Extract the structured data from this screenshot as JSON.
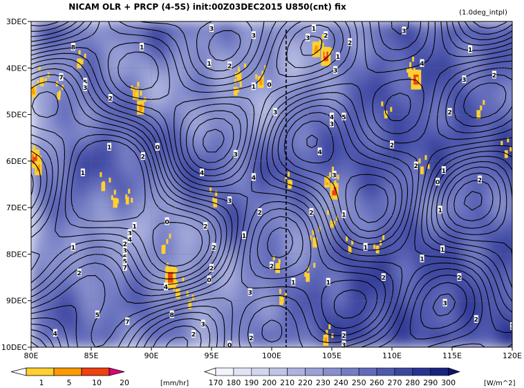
{
  "chart_data": {
    "type": "heatmap",
    "title": "NICAM  OLR + PRCP (4-5S) init:00Z03DEC2015 U850(cnt) fix",
    "subtitle": "(1.0deg_intpl)",
    "x_ticks": [
      "80E",
      "85E",
      "90E",
      "95E",
      "100E",
      "105E",
      "110E",
      "115E",
      "120E"
    ],
    "x_values": [
      80,
      85,
      90,
      95,
      100,
      105,
      110,
      115,
      120
    ],
    "y_ticks": [
      "3DEC",
      "4DEC",
      "5DEC",
      "6DEC",
      "7DEC",
      "8DEC",
      "9DEC",
      "10DEC"
    ],
    "y_values": [
      3,
      4,
      5,
      6,
      7,
      8,
      9,
      10
    ],
    "xlim": [
      80,
      120
    ],
    "ylim": [
      3,
      10
    ],
    "y_direction": "downward",
    "marker_line_lon": 101.2,
    "precip_colorbar": {
      "labels": [
        "1",
        "5",
        "10",
        "20"
      ],
      "unit": "[mm/hr]",
      "colors": [
        "#ffffff",
        "#ffd030",
        "#ff9a00",
        "#f04010",
        "#e0007a"
      ]
    },
    "olr_colorbar": {
      "labels": [
        "170",
        "180",
        "190",
        "200",
        "210",
        "220",
        "230",
        "240",
        "250",
        "260",
        "270",
        "280",
        "290",
        "300"
      ],
      "unit": "[W/m^2]",
      "colors": [
        "#ffffff",
        "#f3f3fb",
        "#e2e4f4",
        "#d2d5ee",
        "#c0c4e6",
        "#adb2de",
        "#9aa1d6",
        "#878fcd",
        "#747dc4",
        "#626bba",
        "#4f59ae",
        "#3c47a0",
        "#29338f",
        "#1a2280",
        "#0d1570"
      ]
    },
    "olr_field_lon": [
      80,
      82.5,
      85,
      87.5,
      90,
      92.5,
      95,
      97.5,
      100,
      102.5,
      105,
      107.5,
      110,
      112.5,
      115,
      117.5,
      120
    ],
    "olr_field_day": [
      3,
      3.5,
      4,
      4.5,
      5,
      5.5,
      6,
      6.5,
      7,
      7.5,
      8,
      8.5,
      9,
      9.5,
      10
    ],
    "olr_field": [
      [
        255,
        262,
        240,
        245,
        268,
        262,
        250,
        238,
        246,
        236,
        240,
        252,
        262,
        270,
        266,
        258,
        262
      ],
      [
        245,
        252,
        236,
        240,
        258,
        246,
        240,
        232,
        238,
        226,
        232,
        244,
        256,
        262,
        258,
        252,
        258
      ],
      [
        228,
        244,
        250,
        230,
        232,
        228,
        232,
        236,
        226,
        222,
        236,
        250,
        262,
        270,
        264,
        256,
        262
      ],
      [
        222,
        240,
        256,
        246,
        226,
        232,
        240,
        228,
        222,
        234,
        246,
        262,
        268,
        264,
        262,
        250,
        256
      ],
      [
        214,
        236,
        250,
        258,
        246,
        236,
        226,
        224,
        230,
        242,
        254,
        266,
        262,
        258,
        266,
        258,
        262
      ],
      [
        220,
        232,
        248,
        262,
        262,
        254,
        242,
        232,
        244,
        252,
        258,
        266,
        264,
        270,
        272,
        262,
        268
      ],
      [
        232,
        262,
        270,
        260,
        256,
        264,
        262,
        246,
        262,
        272,
        262,
        266,
        274,
        262,
        268,
        262,
        266
      ],
      [
        238,
        260,
        262,
        252,
        246,
        260,
        258,
        254,
        262,
        258,
        246,
        258,
        262,
        252,
        256,
        252,
        262
      ],
      [
        234,
        248,
        246,
        236,
        226,
        240,
        252,
        258,
        252,
        240,
        232,
        246,
        250,
        242,
        246,
        240,
        252
      ],
      [
        228,
        236,
        232,
        226,
        222,
        226,
        244,
        256,
        246,
        232,
        236,
        258,
        262,
        258,
        264,
        258,
        262
      ],
      [
        232,
        244,
        226,
        232,
        240,
        226,
        232,
        246,
        240,
        240,
        256,
        268,
        272,
        268,
        270,
        266,
        270
      ],
      [
        242,
        252,
        236,
        242,
        246,
        230,
        224,
        238,
        244,
        250,
        262,
        272,
        270,
        266,
        268,
        262,
        266
      ],
      [
        250,
        258,
        250,
        248,
        252,
        238,
        226,
        232,
        248,
        256,
        266,
        270,
        262,
        260,
        266,
        264,
        270
      ],
      [
        252,
        262,
        256,
        252,
        250,
        246,
        230,
        236,
        252,
        258,
        270,
        276,
        268,
        266,
        272,
        268,
        272
      ],
      [
        246,
        252,
        248,
        242,
        240,
        238,
        232,
        244,
        256,
        262,
        272,
        278,
        272,
        268,
        266,
        270,
        276
      ]
    ],
    "precip_cells": [
      {
        "lon": 80.2,
        "day": 4.5,
        "mmhr": 6
      },
      {
        "lon": 80.9,
        "day": 4.3,
        "mmhr": 3
      },
      {
        "lon": 80.3,
        "day": 5.95,
        "mmhr": 12
      },
      {
        "lon": 80.6,
        "day": 6.15,
        "mmhr": 8
      },
      {
        "lon": 82.3,
        "day": 4.6,
        "mmhr": 2
      },
      {
        "lon": 84.0,
        "day": 3.9,
        "mmhr": 4
      },
      {
        "lon": 88.7,
        "day": 4.55,
        "mmhr": 6
      },
      {
        "lon": 89.1,
        "day": 4.85,
        "mmhr": 8
      },
      {
        "lon": 86.0,
        "day": 6.55,
        "mmhr": 3
      },
      {
        "lon": 87.0,
        "day": 6.9,
        "mmhr": 4
      },
      {
        "lon": 88.0,
        "day": 6.85,
        "mmhr": 2
      },
      {
        "lon": 91.0,
        "day": 7.9,
        "mmhr": 3
      },
      {
        "lon": 91.6,
        "day": 8.5,
        "mmhr": 14
      },
      {
        "lon": 92.2,
        "day": 8.85,
        "mmhr": 4
      },
      {
        "lon": 95.3,
        "day": 6.9,
        "mmhr": 3
      },
      {
        "lon": 93.2,
        "day": 9.1,
        "mmhr": 2
      },
      {
        "lon": 97.0,
        "day": 4.5,
        "mmhr": 3
      },
      {
        "lon": 99.1,
        "day": 4.3,
        "mmhr": 6
      },
      {
        "lon": 103.7,
        "day": 3.6,
        "mmhr": 9
      },
      {
        "lon": 104.5,
        "day": 3.75,
        "mmhr": 12
      },
      {
        "lon": 101.5,
        "day": 6.5,
        "mmhr": 3
      },
      {
        "lon": 105.2,
        "day": 6.65,
        "mmhr": 10
      },
      {
        "lon": 104.6,
        "day": 6.45,
        "mmhr": 5
      },
      {
        "lon": 105.0,
        "day": 7.35,
        "mmhr": 2
      },
      {
        "lon": 103.6,
        "day": 7.75,
        "mmhr": 4
      },
      {
        "lon": 103.0,
        "day": 8.5,
        "mmhr": 3
      },
      {
        "lon": 106.5,
        "day": 7.9,
        "mmhr": 2
      },
      {
        "lon": 100.8,
        "day": 9.0,
        "mmhr": 3
      },
      {
        "lon": 104.5,
        "day": 9.85,
        "mmhr": 5
      },
      {
        "lon": 108.8,
        "day": 7.9,
        "mmhr": 2
      },
      {
        "lon": 109.5,
        "day": 5.0,
        "mmhr": 2
      },
      {
        "lon": 112.0,
        "day": 4.25,
        "mmhr": 13
      },
      {
        "lon": 111.5,
        "day": 4.1,
        "mmhr": 3
      },
      {
        "lon": 117.2,
        "day": 5.0,
        "mmhr": 3
      },
      {
        "lon": 119.5,
        "day": 5.85,
        "mmhr": 2
      },
      {
        "lon": 112.5,
        "day": 6.2,
        "mmhr": 2
      },
      {
        "lon": 97.3,
        "day": 4.2,
        "mmhr": 4
      },
      {
        "lon": 100.5,
        "day": 8.3,
        "mmhr": 4
      }
    ],
    "u850_contour_labels": [
      {
        "lon": 95.0,
        "day": 3.15,
        "value": "3"
      },
      {
        "lon": 98.5,
        "day": 3.3,
        "value": "3"
      },
      {
        "lon": 83.5,
        "day": 3.55,
        "value": "8"
      },
      {
        "lon": 89.2,
        "day": 3.55,
        "value": "1"
      },
      {
        "lon": 94.8,
        "day": 3.9,
        "value": "1"
      },
      {
        "lon": 96.5,
        "day": 3.95,
        "value": "2"
      },
      {
        "lon": 82.5,
        "day": 4.2,
        "value": "7"
      },
      {
        "lon": 84.5,
        "day": 4.3,
        "value": "5"
      },
      {
        "lon": 84.5,
        "day": 4.42,
        "value": "3"
      },
      {
        "lon": 86.6,
        "day": 4.65,
        "value": "2"
      },
      {
        "lon": 98.5,
        "day": 4.4,
        "value": "1"
      },
      {
        "lon": 99.8,
        "day": 4.35,
        "value": "0"
      },
      {
        "lon": 103.5,
        "day": 3.15,
        "value": "1"
      },
      {
        "lon": 104.5,
        "day": 3.3,
        "value": "2"
      },
      {
        "lon": 103.0,
        "day": 3.35,
        "value": "3"
      },
      {
        "lon": 106.5,
        "day": 3.45,
        "value": "2"
      },
      {
        "lon": 105.5,
        "day": 3.75,
        "value": "1"
      },
      {
        "lon": 105.3,
        "day": 4.05,
        "value": "3"
      },
      {
        "lon": 111.0,
        "day": 3.2,
        "value": "3"
      },
      {
        "lon": 116.5,
        "day": 3.6,
        "value": "1"
      },
      {
        "lon": 112.5,
        "day": 3.9,
        "value": "4"
      },
      {
        "lon": 118.5,
        "day": 4.15,
        "value": "2"
      },
      {
        "lon": 116.0,
        "day": 4.25,
        "value": "3"
      },
      {
        "lon": 100.3,
        "day": 4.95,
        "value": "3"
      },
      {
        "lon": 105.0,
        "day": 5.05,
        "value": "4"
      },
      {
        "lon": 106.0,
        "day": 5.05,
        "value": "5"
      },
      {
        "lon": 105.0,
        "day": 5.2,
        "value": "3"
      },
      {
        "lon": 114.8,
        "day": 4.95,
        "value": "2"
      },
      {
        "lon": 86.5,
        "day": 5.7,
        "value": "1"
      },
      {
        "lon": 89.3,
        "day": 5.9,
        "value": "2"
      },
      {
        "lon": 90.5,
        "day": 5.7,
        "value": "0"
      },
      {
        "lon": 97.0,
        "day": 5.85,
        "value": "3"
      },
      {
        "lon": 104.0,
        "day": 5.8,
        "value": "4"
      },
      {
        "lon": 110.0,
        "day": 5.65,
        "value": "2"
      },
      {
        "lon": 112.0,
        "day": 6.1,
        "value": "2"
      },
      {
        "lon": 114.3,
        "day": 6.2,
        "value": "1"
      },
      {
        "lon": 113.8,
        "day": 6.45,
        "value": "0"
      },
      {
        "lon": 117.3,
        "day": 6.4,
        "value": "2"
      },
      {
        "lon": 84.3,
        "day": 6.25,
        "value": "1"
      },
      {
        "lon": 94.2,
        "day": 6.25,
        "value": "4"
      },
      {
        "lon": 98.5,
        "day": 6.35,
        "value": "4"
      },
      {
        "lon": 105.2,
        "day": 6.3,
        "value": "3"
      },
      {
        "lon": 96.5,
        "day": 6.85,
        "value": "3"
      },
      {
        "lon": 99.0,
        "day": 7.1,
        "value": "2"
      },
      {
        "lon": 103.3,
        "day": 7.1,
        "value": "2"
      },
      {
        "lon": 106.0,
        "day": 7.15,
        "value": "1"
      },
      {
        "lon": 114.0,
        "day": 7.05,
        "value": "1"
      },
      {
        "lon": 91.3,
        "day": 7.3,
        "value": "0"
      },
      {
        "lon": 88.6,
        "day": 7.4,
        "value": "1"
      },
      {
        "lon": 88.2,
        "day": 7.55,
        "value": "3"
      },
      {
        "lon": 88.2,
        "day": 7.68,
        "value": "4"
      },
      {
        "lon": 94.5,
        "day": 7.4,
        "value": "2"
      },
      {
        "lon": 97.7,
        "day": 7.6,
        "value": "1"
      },
      {
        "lon": 83.5,
        "day": 7.85,
        "value": "1"
      },
      {
        "lon": 87.8,
        "day": 7.78,
        "value": "2"
      },
      {
        "lon": 87.8,
        "day": 7.92,
        "value": "3"
      },
      {
        "lon": 87.8,
        "day": 8.05,
        "value": "6"
      },
      {
        "lon": 87.8,
        "day": 8.15,
        "value": "5"
      },
      {
        "lon": 87.8,
        "day": 8.28,
        "value": "7"
      },
      {
        "lon": 95.2,
        "day": 7.85,
        "value": "2"
      },
      {
        "lon": 100.0,
        "day": 8.25,
        "value": "2"
      },
      {
        "lon": 107.8,
        "day": 7.85,
        "value": "1"
      },
      {
        "lon": 114.2,
        "day": 7.9,
        "value": "1"
      },
      {
        "lon": 112.5,
        "day": 8.1,
        "value": "1"
      },
      {
        "lon": 84.0,
        "day": 8.4,
        "value": "2"
      },
      {
        "lon": 95.0,
        "day": 8.3,
        "value": "2"
      },
      {
        "lon": 94.8,
        "day": 8.55,
        "value": "0"
      },
      {
        "lon": 101.8,
        "day": 8.6,
        "value": "1"
      },
      {
        "lon": 104.7,
        "day": 8.6,
        "value": "1"
      },
      {
        "lon": 109.3,
        "day": 8.5,
        "value": "2"
      },
      {
        "lon": 115.6,
        "day": 8.5,
        "value": "2"
      },
      {
        "lon": 91.2,
        "day": 8.7,
        "value": "4"
      },
      {
        "lon": 98.2,
        "day": 8.82,
        "value": "3"
      },
      {
        "lon": 114.4,
        "day": 9.05,
        "value": "3"
      },
      {
        "lon": 85.5,
        "day": 9.3,
        "value": "5"
      },
      {
        "lon": 91.7,
        "day": 9.3,
        "value": "8"
      },
      {
        "lon": 88.0,
        "day": 9.45,
        "value": "7"
      },
      {
        "lon": 94.3,
        "day": 9.5,
        "value": "3"
      },
      {
        "lon": 117.0,
        "day": 9.4,
        "value": "2"
      },
      {
        "lon": 120.0,
        "day": 9.55,
        "value": "3"
      },
      {
        "lon": 82.0,
        "day": 9.7,
        "value": "4"
      },
      {
        "lon": 93.5,
        "day": 9.72,
        "value": "2"
      },
      {
        "lon": 98.3,
        "day": 9.8,
        "value": "2"
      },
      {
        "lon": 106.0,
        "day": 9.75,
        "value": "2"
      },
      {
        "lon": 106.0,
        "day": 9.95,
        "value": "3"
      },
      {
        "lon": 96.5,
        "day": 9.95,
        "value": "0"
      }
    ],
    "grid": true
  }
}
